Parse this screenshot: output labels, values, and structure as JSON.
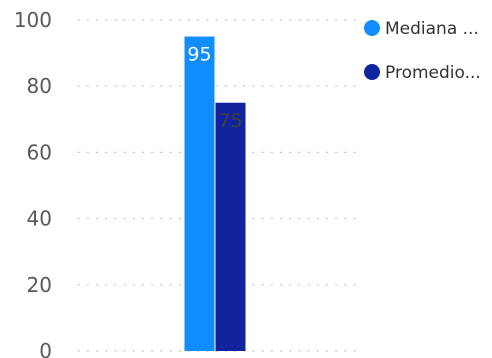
{
  "chart_data": {
    "type": "bar",
    "categories": [
      ""
    ],
    "series": [
      {
        "name": "Mediana ...",
        "values": [
          95
        ],
        "color": "#118DFF"
      },
      {
        "name": "Promedio...",
        "values": [
          75
        ],
        "color": "#12239E"
      }
    ],
    "data_labels": [
      "95",
      "75"
    ],
    "data_label_colors": [
      "#ffffff",
      "#404040"
    ],
    "yticks": [
      "0",
      "20",
      "40",
      "60",
      "80",
      "100"
    ],
    "ylim": [
      0,
      100
    ],
    "xlabel": "",
    "ylabel": "",
    "title": "",
    "grid": "horizontal-dotted",
    "legend_position": "top-right"
  }
}
